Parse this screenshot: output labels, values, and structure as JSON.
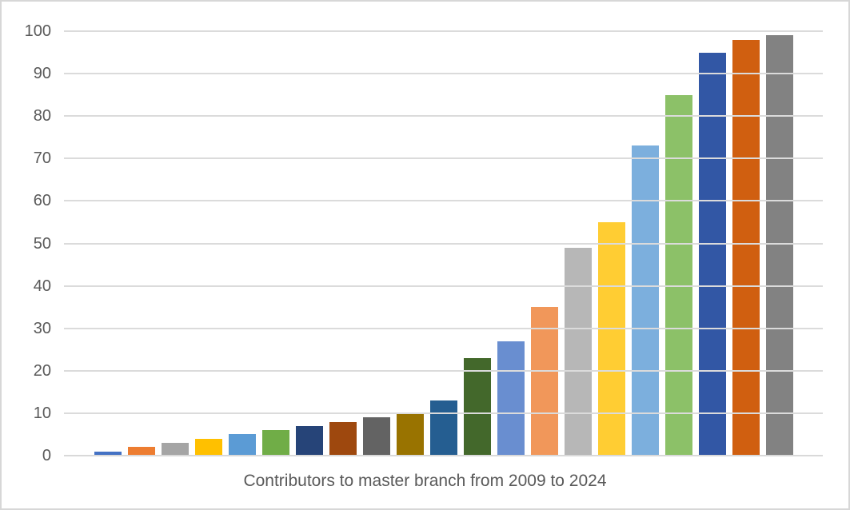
{
  "chart_data": {
    "type": "bar",
    "title": "Contributors to master branch from 2009 to 2024",
    "xlabel": "Contributors to master branch from 2009 to 2024",
    "ylabel": "",
    "ylim": [
      0,
      100
    ],
    "y_ticks": [
      0,
      10,
      20,
      30,
      40,
      50,
      60,
      70,
      80,
      90,
      100
    ],
    "grid": true,
    "legend": "none",
    "values": [
      1,
      2,
      3,
      4,
      5,
      6,
      7,
      8,
      9,
      10,
      13,
      23,
      27,
      35,
      49,
      55,
      73,
      85,
      95,
      98,
      99
    ],
    "bar_colors": [
      "#4472C4",
      "#ED7D31",
      "#A5A5A5",
      "#FFC000",
      "#5B9BD5",
      "#70AD47",
      "#264478",
      "#9E480E",
      "#636363",
      "#997300",
      "#255E91",
      "#43682B",
      "#698ED0",
      "#F1975A",
      "#B7B7B7",
      "#FFCD33",
      "#7CAFDD",
      "#8CC168",
      "#3257A5",
      "#D05F10",
      "#828282"
    ]
  },
  "styles": {
    "background_color": "#FFFFFF",
    "frame_border_color": "#D7D7D7",
    "gridline_color": "#DBDBDB",
    "axis_line_color": "#D9D9D9",
    "tick_label_color": "#595959",
    "title_color": "#595959"
  }
}
